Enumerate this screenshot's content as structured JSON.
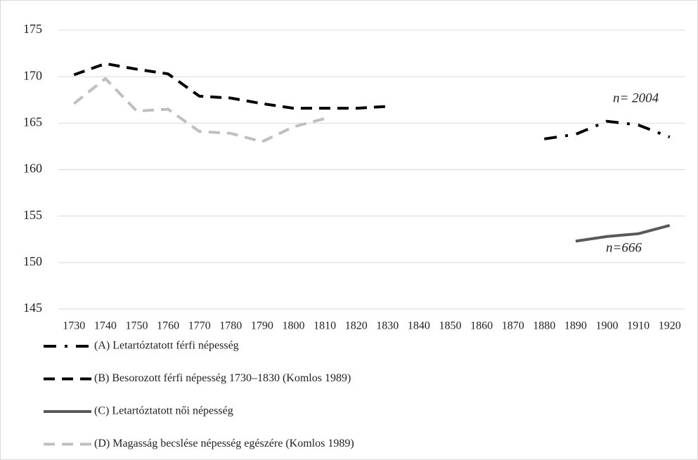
{
  "chart_data": {
    "type": "line",
    "categories": [
      "1730",
      "1740",
      "1750",
      "1760",
      "1770",
      "1780",
      "1790",
      "1800",
      "1810",
      "1820",
      "1830",
      "1840",
      "1850",
      "1860",
      "1870",
      "1880",
      "1890",
      "1900",
      "1910",
      "1920"
    ],
    "series": [
      {
        "name": "(A) Letartóztatott férfi népesség",
        "color": "#000000",
        "dash": "dash-dot",
        "values": [
          null,
          null,
          null,
          null,
          null,
          null,
          null,
          null,
          null,
          null,
          null,
          null,
          null,
          null,
          null,
          163.3,
          163.8,
          165.2,
          164.8,
          163.5
        ]
      },
      {
        "name": "(B) Besorozott férfi népesség 1730–1830 (Komlos 1989)",
        "color": "#000000",
        "dash": "dash",
        "values": [
          170.2,
          171.4,
          170.8,
          170.3,
          167.9,
          167.7,
          167.1,
          166.6,
          166.6,
          166.6,
          166.8,
          null,
          null,
          null,
          null,
          null,
          null,
          null,
          null,
          null
        ]
      },
      {
        "name": "(C) Letartóztatott női népesség",
        "color": "#595959",
        "dash": "solid",
        "values": [
          null,
          null,
          null,
          null,
          null,
          null,
          null,
          null,
          null,
          null,
          null,
          null,
          null,
          null,
          null,
          null,
          152.3,
          152.8,
          153.1,
          154.0
        ]
      },
      {
        "name": "(D) Magasság becslése népesség egészére (Komlos 1989)",
        "color": "#bfbfbf",
        "dash": "dash",
        "values": [
          167.1,
          169.8,
          166.3,
          166.5,
          164.1,
          163.9,
          163.0,
          164.6,
          165.5,
          null,
          null,
          null,
          null,
          null,
          null,
          null,
          null,
          null,
          null,
          null
        ]
      }
    ],
    "annotations": [
      "n= 2004",
      "n=666"
    ],
    "ylim": [
      145,
      175
    ],
    "yticks": [
      145,
      150,
      155,
      160,
      165,
      170,
      175
    ],
    "grid": true
  }
}
